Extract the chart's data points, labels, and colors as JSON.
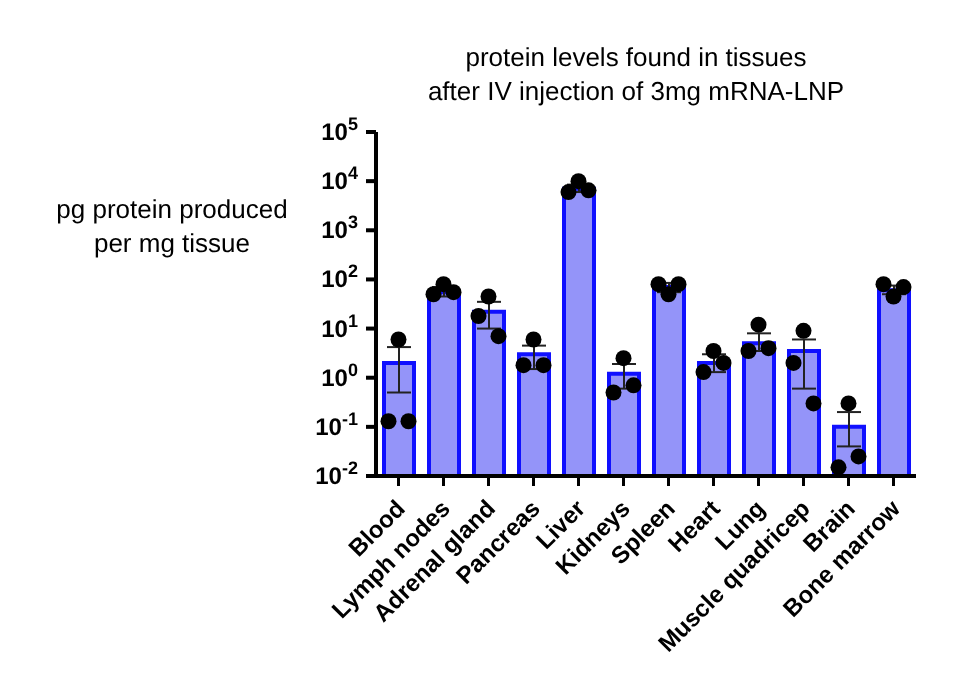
{
  "chart_data": {
    "type": "bar",
    "title": "protein levels found in tissues\nafter IV injection of 3mg mRNA-LNP",
    "ylabel": "pg protein produced\nper mg tissue",
    "categories": [
      "Blood",
      "Lymph nodes",
      "Adrenal gland",
      "Pancreas",
      "Liver",
      "Kidneys",
      "Spleen",
      "Heart",
      "Lung",
      "Muscle quadricep",
      "Brain",
      "Bone marrow"
    ],
    "log": true,
    "ylim": [
      0.01,
      100000
    ],
    "yticks": [
      {
        "value": 0.01,
        "label": "10$^{-2}$"
      },
      {
        "value": 0.1,
        "label": "10$^{-1}$"
      },
      {
        "value": 1,
        "label": "10$^{0}$"
      },
      {
        "value": 10,
        "label": "10$^{1}$"
      },
      {
        "value": 100,
        "label": "10$^{2}$"
      },
      {
        "value": 1000,
        "label": "10$^{3}$"
      },
      {
        "value": 10000,
        "label": "10$^{4}$"
      },
      {
        "value": 100000,
        "label": "10$^{5}$"
      }
    ],
    "series": [
      {
        "color": "#8888f8",
        "values": [
          2,
          55,
          22,
          3,
          7000,
          1.2,
          70,
          2,
          5,
          3.5,
          0.1,
          60
        ],
        "errors": [
          [
            0.5,
            4.2
          ],
          [
            45,
            70
          ],
          [
            10,
            35
          ],
          [
            1.5,
            4.5
          ],
          [
            6000,
            8500
          ],
          [
            0.6,
            1.9
          ],
          [
            55,
            85
          ],
          [
            1.3,
            3
          ],
          [
            3.5,
            8
          ],
          [
            0.6,
            6
          ],
          [
            0.04,
            0.2
          ],
          [
            50,
            75
          ]
        ]
      },
      {
        "type": "scatter",
        "color": "#000000",
        "marker": "circle",
        "x": [
          "Blood",
          "Blood",
          "Blood",
          "Lymph nodes",
          "Lymph nodes",
          "Lymph nodes",
          "Adrenal gland",
          "Adrenal gland",
          "Adrenal gland",
          "Pancreas",
          "Pancreas",
          "Pancreas",
          "Liver",
          "Liver",
          "Liver",
          "Kidneys",
          "Kidneys",
          "Kidneys",
          "Spleen",
          "Spleen",
          "Spleen",
          "Heart",
          "Heart",
          "Heart",
          "Lung",
          "Lung",
          "Lung",
          "Muscle quadricep",
          "Muscle quadricep",
          "Muscle quadricep",
          "Brain",
          "Brain",
          "Brain",
          "Bone marrow",
          "Bone marrow",
          "Bone marrow"
        ],
        "values": [
          0.13,
          6,
          0.13,
          50,
          80,
          55,
          18,
          45,
          7,
          1.8,
          6,
          1.8,
          6000,
          10000,
          6500,
          0.5,
          2.5,
          0.7,
          80,
          50,
          80,
          1.3,
          3.5,
          2,
          3.5,
          12,
          4,
          2,
          9,
          0.3,
          0.015,
          0.3,
          0.025,
          80,
          45,
          70
        ]
      }
    ]
  }
}
